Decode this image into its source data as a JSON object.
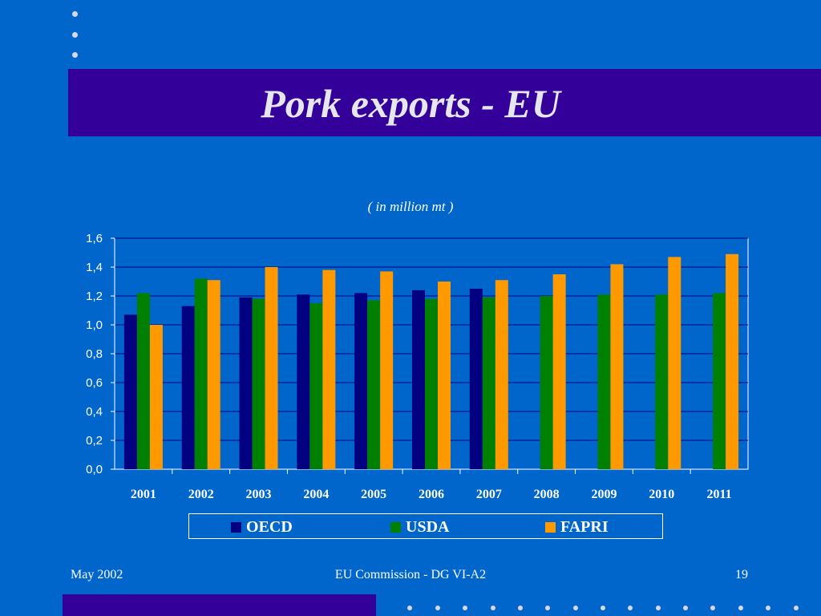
{
  "slide": {
    "title": "Pork exports - EU",
    "subtitle": "( in million mt )",
    "footer_left": "May 2002",
    "footer_center": "EU Commission - DG VI-A2",
    "footer_right": "19"
  },
  "colors": {
    "background": "#0066CC",
    "title_bar": "#330099",
    "OECD": "#000080",
    "USDA": "#008000",
    "FAPRI": "#FF9900"
  },
  "chart_data": {
    "type": "bar",
    "title": "",
    "xlabel": "",
    "ylabel": "",
    "ylim": [
      0,
      1.6
    ],
    "yticks": [
      "0,0",
      "0,2",
      "0,4",
      "0,6",
      "0,8",
      "1,0",
      "1,2",
      "1,4",
      "1,6"
    ],
    "grid": true,
    "legend_position": "bottom",
    "categories": [
      "2001",
      "2002",
      "2003",
      "2004",
      "2005",
      "2006",
      "2007",
      "2008",
      "2009",
      "2010",
      "2011"
    ],
    "series": [
      {
        "name": "OECD",
        "values": [
          1.07,
          1.13,
          1.19,
          1.21,
          1.22,
          1.24,
          1.25,
          null,
          null,
          null,
          null
        ]
      },
      {
        "name": "USDA",
        "values": [
          1.22,
          1.32,
          1.18,
          1.15,
          1.17,
          1.18,
          1.19,
          1.2,
          1.21,
          1.21,
          1.22
        ]
      },
      {
        "name": "FAPRI",
        "values": [
          1.0,
          1.31,
          1.4,
          1.38,
          1.37,
          1.3,
          1.31,
          1.35,
          1.42,
          1.47,
          1.49
        ]
      }
    ]
  }
}
